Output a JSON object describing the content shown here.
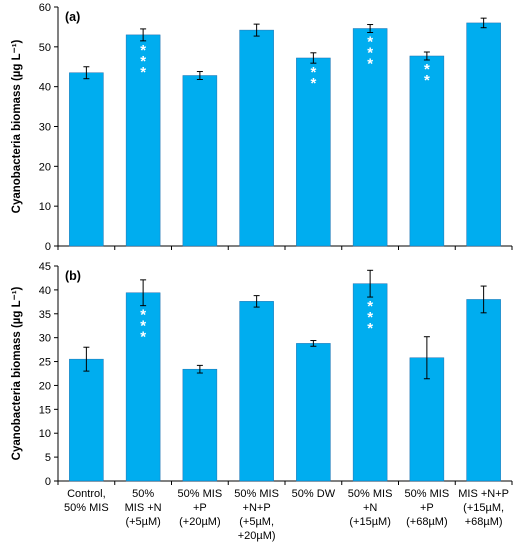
{
  "chart_data": [
    {
      "type": "bar",
      "panel_label": "(a)",
      "ylabel": "Cyanobacteria biomass (µg L⁻¹)",
      "ylim": [
        0,
        60
      ],
      "yticks": [
        0,
        10,
        20,
        30,
        40,
        50,
        60
      ],
      "categories": [
        "Control, 50% MIS",
        "50% MIS +N (+5µM)",
        "50% MIS +P (+20µM)",
        "50% MIS +N+P (+5µM, +20µM)",
        "50% DW",
        "50% MIS +N (+15µM)",
        "50% MIS +P (+68µM)",
        "MIS +N+P (+15µM, +68µM)"
      ],
      "values": [
        43.5,
        53,
        42.8,
        54.2,
        47.2,
        54.6,
        47.7,
        56
      ],
      "errors": [
        1.5,
        1.5,
        1.0,
        1.5,
        1.3,
        1.0,
        1.0,
        1.2
      ],
      "annotations": [
        "",
        "***",
        "",
        "",
        "**",
        "***",
        "**",
        ""
      ],
      "bar_color": "#00adef",
      "grid": false
    },
    {
      "type": "bar",
      "panel_label": "(b)",
      "ylabel": "Cyanobacteria biomass (µg L⁻¹)",
      "ylim": [
        0,
        45
      ],
      "yticks": [
        0,
        5,
        10,
        15,
        20,
        25,
        30,
        35,
        40,
        45
      ],
      "categories": [
        "Control, 50% MIS",
        "50% MIS +N (+5µM)",
        "50% MIS +P (+20µM)",
        "50% MIS +N+P (+5µM, +20µM)",
        "50% DW",
        "50% MIS +N (+15µM)",
        "50% MIS +P (+68µM)",
        "MIS +N+P (+15µM, +68µM)"
      ],
      "values": [
        25.5,
        39.4,
        23.4,
        37.6,
        28.8,
        41.3,
        25.8,
        38
      ],
      "errors": [
        2.5,
        2.7,
        0.8,
        1.2,
        0.6,
        2.8,
        4.4,
        2.8
      ],
      "annotations": [
        "",
        "***",
        "",
        "",
        "",
        "***",
        "",
        ""
      ],
      "bar_color": "#00adef",
      "grid": false
    }
  ],
  "x_tick_lines": [
    [
      "Control,",
      "50% MIS"
    ],
    [
      "50%",
      "MIS +N",
      "(+5µM)"
    ],
    [
      "50% MIS",
      "+P",
      "(+20µM)"
    ],
    [
      "50% MIS",
      "+N+P",
      "(+5µM,",
      "+20µM)"
    ],
    [
      "50% DW"
    ],
    [
      "50% MIS",
      "+N",
      "(+15µM)"
    ],
    [
      "50% MIS",
      "+P",
      "(+68µM)"
    ],
    [
      "MIS +N+P",
      "(+15µM,",
      "+68µM)"
    ]
  ]
}
